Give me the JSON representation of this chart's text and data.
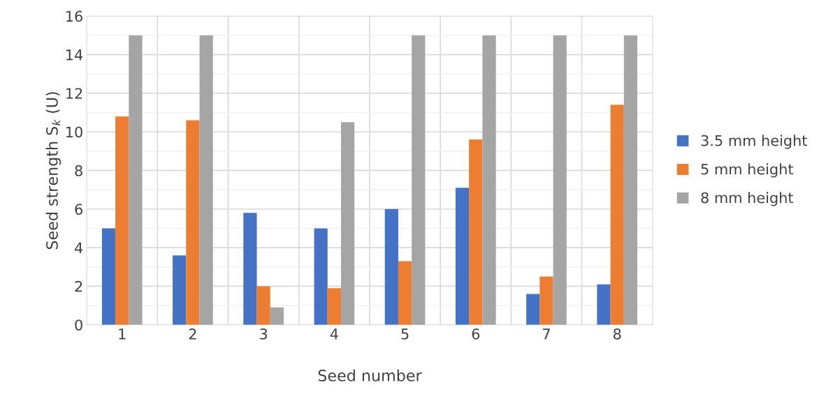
{
  "chart_data": {
    "type": "bar",
    "xlabel": "Seed number",
    "ylabel": "Seed strength S$_{k}$ (U)",
    "categories": [
      "1",
      "2",
      "3",
      "4",
      "5",
      "6",
      "7",
      "8"
    ],
    "series": [
      {
        "name": "3.5 mm height",
        "color": "#4472c4",
        "values": [
          5.0,
          3.6,
          5.8,
          5.0,
          6.0,
          7.1,
          1.6,
          2.1
        ]
      },
      {
        "name": "5 mm height",
        "color": "#ed7d31",
        "values": [
          10.8,
          10.6,
          2.0,
          1.9,
          3.3,
          9.6,
          2.5,
          11.4
        ]
      },
      {
        "name": "8 mm height",
        "color": "#a5a5a5",
        "values": [
          15.0,
          15.0,
          0.9,
          10.5,
          15.0,
          15.0,
          15.0,
          15.0
        ]
      }
    ],
    "ylim": [
      0,
      16
    ],
    "yticks": [
      0,
      2,
      4,
      6,
      8,
      10,
      12,
      14,
      16
    ],
    "grid": true,
    "legend": "right"
  }
}
